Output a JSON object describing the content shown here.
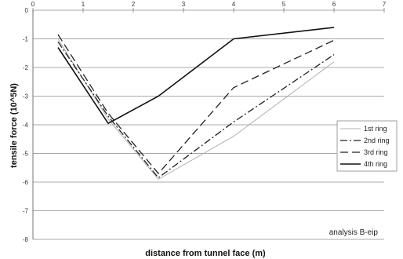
{
  "chart_data": {
    "type": "line",
    "title": "",
    "xlabel": "distance from tunnel face (m)",
    "ylabel": "tensile force (10^5N)",
    "xlim": [
      0,
      7
    ],
    "ylim": [
      -8,
      0
    ],
    "x_ticks": [
      "0",
      "1",
      "2",
      "3",
      "4",
      "5",
      "6",
      "7"
    ],
    "y_ticks": [
      "0",
      "-1",
      "-2",
      "-3",
      "-4",
      "-5",
      "-6",
      "-7",
      "-8"
    ],
    "grid": "horizontal",
    "legend_position": "right",
    "annotation": "analysis B-eip",
    "series": [
      {
        "name": "1st ring",
        "color": "#b0b0b0",
        "style": "solid-thin",
        "x": [
          0.5,
          1.5,
          2.5,
          4,
          6
        ],
        "y": [
          -1.0,
          -3.8,
          -5.9,
          -4.4,
          -1.8
        ]
      },
      {
        "name": "2nd ring",
        "color": "#222222",
        "style": "dash-dot",
        "x": [
          0.5,
          1.5,
          2.5,
          4,
          6
        ],
        "y": [
          -1.1,
          -3.7,
          -5.85,
          -3.9,
          -1.55
        ]
      },
      {
        "name": "3rd ring",
        "color": "#222222",
        "style": "dashed",
        "x": [
          0.5,
          1.5,
          2.5,
          4,
          6
        ],
        "y": [
          -0.85,
          -3.6,
          -5.7,
          -2.7,
          -1.05
        ]
      },
      {
        "name": "4th ring",
        "color": "#111111",
        "style": "solid",
        "x": [
          0.5,
          1.5,
          2.5,
          4,
          6
        ],
        "y": [
          -1.3,
          -3.95,
          -3.0,
          -1.0,
          -0.6
        ]
      }
    ]
  }
}
